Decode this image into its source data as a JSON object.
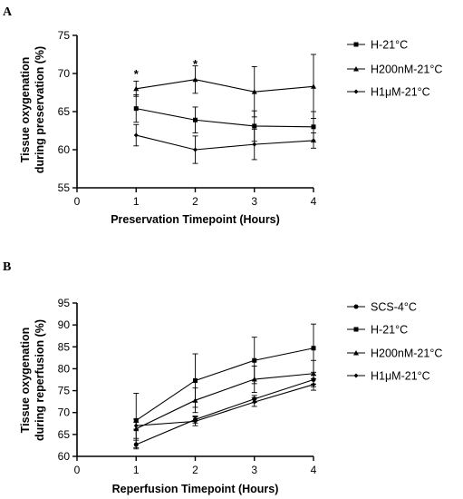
{
  "chart_data": [
    {
      "panel": "A",
      "type": "line",
      "title": "",
      "xlabel": "Preservation Timepoint (Hours)",
      "ylabel": "Tissue oxygenation during preservation (%)",
      "ylabel_lines": [
        "Tissue oxygenation",
        "during preservation (%)"
      ],
      "xlim": [
        0,
        4
      ],
      "ylim": [
        55,
        75
      ],
      "xticks": [
        0,
        1,
        2,
        3,
        4
      ],
      "yticks": [
        55,
        60,
        65,
        70,
        75
      ],
      "x": [
        1,
        2,
        3,
        4
      ],
      "grid": false,
      "legend_position": "right",
      "series": [
        {
          "name": "H-21°C",
          "marker": "square",
          "values": [
            65.4,
            63.9,
            63.1,
            63.0
          ],
          "errors": [
            1.8,
            1.7,
            2.0,
            2.0
          ]
        },
        {
          "name": "H200nM-21°C",
          "marker": "triangle",
          "values": [
            68.0,
            69.2,
            67.6,
            68.3
          ],
          "errors": [
            1.0,
            1.8,
            3.3,
            4.2
          ]
        },
        {
          "name": "H1μM-21°C",
          "marker": "diamond",
          "values": [
            61.9,
            60.0,
            60.7,
            61.2
          ],
          "errors": [
            1.4,
            1.8,
            2.0,
            1.0
          ]
        }
      ],
      "annotations": [
        {
          "x": 1,
          "y": 70.0,
          "text": "*"
        },
        {
          "x": 2,
          "y": 71.3,
          "text": "*"
        }
      ]
    },
    {
      "panel": "B",
      "type": "line",
      "title": "",
      "xlabel": "Reperfusion Timepoint (Hours)",
      "ylabel": "Tissue oxygenation during reperfusion (%)",
      "ylabel_lines": [
        "Tissue oxygenation",
        "during reperfusion (%)"
      ],
      "xlim": [
        0,
        4
      ],
      "ylim": [
        60,
        95
      ],
      "xticks": [
        0,
        1,
        2,
        3,
        4
      ],
      "yticks": [
        60,
        65,
        70,
        75,
        80,
        85,
        90,
        95
      ],
      "x": [
        1,
        2,
        3,
        4
      ],
      "grid": false,
      "legend_position": "right",
      "series": [
        {
          "name": "SCS-4°C",
          "marker": "circle",
          "values": [
            62.7,
            68.4,
            73.1,
            77.5
          ],
          "errors": [
            1.0,
            0.8,
            0.8,
            1.0
          ]
        },
        {
          "name": "H-21°C",
          "marker": "square",
          "values": [
            68.2,
            77.3,
            81.9,
            84.7
          ],
          "errors": [
            6.2,
            6.1,
            5.3,
            5.5
          ]
        },
        {
          "name": "H200nM-21°C",
          "marker": "triangle",
          "values": [
            66.3,
            72.8,
            77.6,
            78.9
          ],
          "errors": [
            2.2,
            2.8,
            3.0,
            3.0
          ]
        },
        {
          "name": "H1μM-21°C",
          "marker": "diamond",
          "values": [
            67.0,
            68.0,
            72.4,
            76.4
          ],
          "errors": [
            0.8,
            1.0,
            1.0,
            1.3
          ]
        }
      ]
    }
  ]
}
